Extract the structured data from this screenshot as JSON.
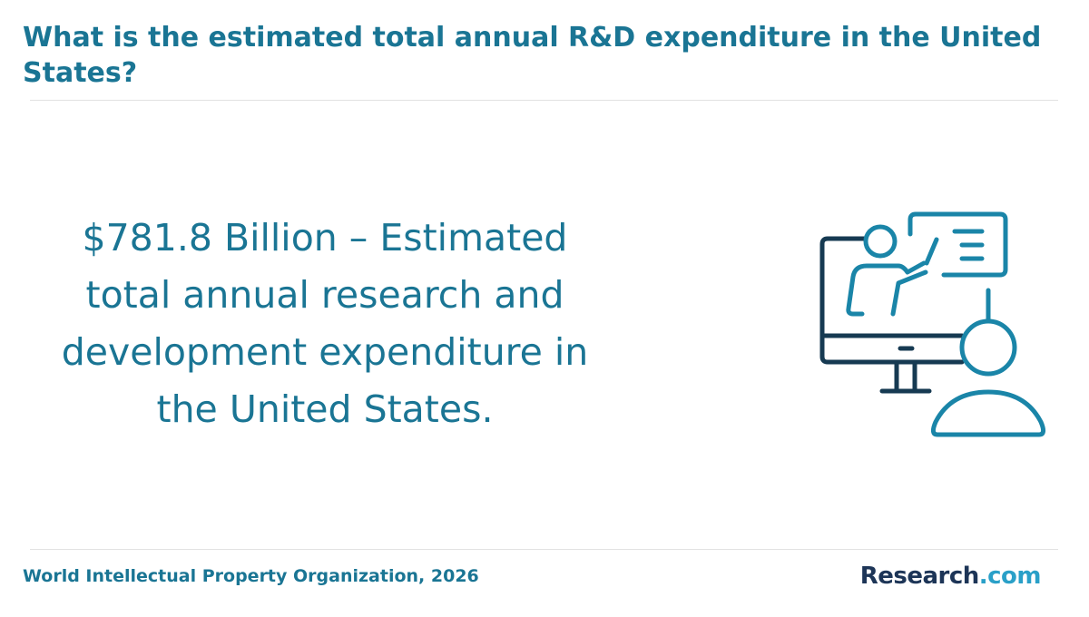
{
  "header": {
    "title": "What is the estimated total annual R&D expenditure in the United States?"
  },
  "statement": "$781.8 Billion – Estimated total annual research and development expenditure in the United States.",
  "footer": {
    "source": "World Intellectual Property Organization, 2026",
    "logo": {
      "brand": "Research",
      "suffix": ".com"
    }
  }
}
